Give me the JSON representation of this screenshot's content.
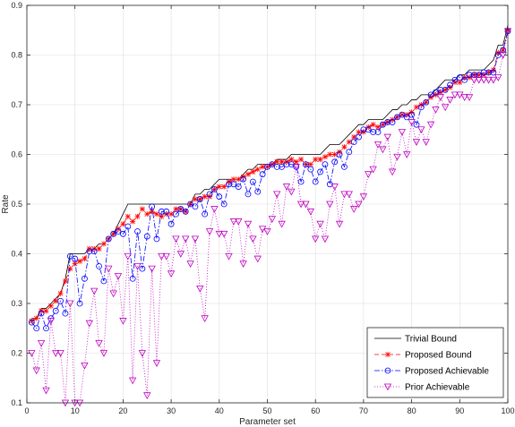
{
  "chart_data": {
    "type": "line",
    "xlabel": "Parameter set",
    "ylabel": "Rate",
    "xlim": [
      0,
      100
    ],
    "ylim": [
      0.1,
      0.9
    ],
    "xticks": [
      0,
      10,
      20,
      30,
      40,
      50,
      60,
      70,
      80,
      90,
      100
    ],
    "yticks": [
      0.1,
      0.2,
      0.3,
      0.4,
      0.5,
      0.6,
      0.7,
      0.8,
      0.9
    ],
    "grid": true,
    "legend_position": "bottom-right",
    "x": [
      1,
      2,
      3,
      4,
      5,
      6,
      7,
      8,
      9,
      10,
      11,
      12,
      13,
      14,
      15,
      16,
      17,
      18,
      19,
      20,
      21,
      22,
      23,
      24,
      25,
      26,
      27,
      28,
      29,
      30,
      31,
      32,
      33,
      34,
      35,
      36,
      37,
      38,
      39,
      40,
      41,
      42,
      43,
      44,
      45,
      46,
      47,
      48,
      49,
      50,
      51,
      52,
      53,
      54,
      55,
      56,
      57,
      58,
      59,
      60,
      61,
      62,
      63,
      64,
      65,
      66,
      67,
      68,
      69,
      70,
      71,
      72,
      73,
      74,
      75,
      76,
      77,
      78,
      79,
      80,
      81,
      82,
      83,
      84,
      85,
      86,
      87,
      88,
      89,
      90,
      91,
      92,
      93,
      94,
      95,
      96,
      97,
      98,
      99,
      100
    ],
    "series": [
      {
        "name": "Trivial Bound",
        "color": "#000000",
        "style": "solid",
        "marker": "none",
        "values": [
          0.27,
          0.27,
          0.29,
          0.29,
          0.3,
          0.31,
          0.32,
          0.35,
          0.4,
          0.4,
          0.4,
          0.4,
          0.41,
          0.41,
          0.42,
          0.42,
          0.43,
          0.44,
          0.46,
          0.48,
          0.5,
          0.5,
          0.5,
          0.5,
          0.5,
          0.5,
          0.5,
          0.5,
          0.5,
          0.5,
          0.5,
          0.5,
          0.5,
          0.5,
          0.52,
          0.52,
          0.53,
          0.53,
          0.54,
          0.55,
          0.55,
          0.55,
          0.55,
          0.55,
          0.56,
          0.57,
          0.57,
          0.58,
          0.58,
          0.58,
          0.58,
          0.59,
          0.59,
          0.59,
          0.6,
          0.6,
          0.6,
          0.6,
          0.6,
          0.6,
          0.6,
          0.61,
          0.62,
          0.62,
          0.62,
          0.63,
          0.64,
          0.65,
          0.66,
          0.66,
          0.67,
          0.67,
          0.67,
          0.67,
          0.68,
          0.69,
          0.69,
          0.7,
          0.7,
          0.71,
          0.71,
          0.72,
          0.72,
          0.72,
          0.73,
          0.74,
          0.75,
          0.75,
          0.75,
          0.76,
          0.76,
          0.77,
          0.77,
          0.77,
          0.77,
          0.78,
          0.79,
          0.82,
          0.82,
          0.86
        ]
      },
      {
        "name": "Proposed Bound",
        "color": "#ff0000",
        "style": "dashed",
        "marker": "x",
        "values": [
          0.265,
          0.27,
          0.285,
          0.285,
          0.295,
          0.305,
          0.32,
          0.345,
          0.37,
          0.38,
          0.385,
          0.39,
          0.41,
          0.41,
          0.41,
          0.42,
          0.43,
          0.44,
          0.45,
          0.46,
          0.475,
          0.465,
          0.475,
          0.49,
          0.48,
          0.485,
          0.48,
          0.475,
          0.48,
          0.48,
          0.49,
          0.49,
          0.485,
          0.5,
          0.51,
          0.51,
          0.515,
          0.515,
          0.53,
          0.535,
          0.535,
          0.545,
          0.55,
          0.55,
          0.555,
          0.56,
          0.565,
          0.57,
          0.575,
          0.575,
          0.58,
          0.585,
          0.585,
          0.585,
          0.59,
          0.585,
          0.59,
          0.58,
          0.58,
          0.59,
          0.59,
          0.595,
          0.6,
          0.6,
          0.605,
          0.615,
          0.625,
          0.635,
          0.645,
          0.645,
          0.655,
          0.66,
          0.655,
          0.66,
          0.665,
          0.67,
          0.675,
          0.68,
          0.68,
          0.685,
          0.695,
          0.7,
          0.705,
          0.715,
          0.72,
          0.725,
          0.73,
          0.735,
          0.745,
          0.745,
          0.755,
          0.755,
          0.76,
          0.76,
          0.76,
          0.765,
          0.77,
          0.805,
          0.81,
          0.85
        ]
      },
      {
        "name": "Proposed Achievable",
        "color": "#0000ff",
        "style": "dashdot",
        "marker": "circle",
        "values": [
          0.262,
          0.25,
          0.28,
          0.25,
          0.27,
          0.285,
          0.305,
          0.28,
          0.395,
          0.39,
          0.3,
          0.35,
          0.405,
          0.405,
          0.375,
          0.345,
          0.43,
          0.44,
          0.445,
          0.44,
          0.455,
          0.35,
          0.445,
          0.37,
          0.435,
          0.495,
          0.43,
          0.485,
          0.485,
          0.46,
          0.48,
          0.49,
          0.485,
          0.5,
          0.495,
          0.51,
          0.48,
          0.52,
          0.53,
          0.515,
          0.5,
          0.54,
          0.54,
          0.535,
          0.55,
          0.52,
          0.545,
          0.525,
          0.56,
          0.575,
          0.58,
          0.575,
          0.575,
          0.58,
          0.58,
          0.575,
          0.545,
          0.58,
          0.57,
          0.545,
          0.565,
          0.58,
          0.54,
          0.585,
          0.6,
          0.575,
          0.605,
          0.625,
          0.635,
          0.65,
          0.65,
          0.645,
          0.645,
          0.66,
          0.665,
          0.665,
          0.675,
          0.68,
          0.675,
          0.68,
          0.66,
          0.695,
          0.705,
          0.72,
          0.725,
          0.73,
          0.73,
          0.74,
          0.75,
          0.755,
          0.75,
          0.76,
          0.76,
          0.76,
          0.765,
          0.765,
          0.765,
          0.8,
          0.81,
          0.848
        ]
      },
      {
        "name": "Prior Achievable",
        "color": "#bf00bf",
        "style": "dotted",
        "marker": "triangle-down",
        "values": [
          0.2,
          0.165,
          0.22,
          0.125,
          0.265,
          0.2,
          0.2,
          0.1,
          0.3,
          0.1,
          0.1,
          0.175,
          0.26,
          0.325,
          0.22,
          0.2,
          0.37,
          0.32,
          0.355,
          0.265,
          0.395,
          0.145,
          0.375,
          0.2,
          0.115,
          0.37,
          0.18,
          0.395,
          0.395,
          0.36,
          0.43,
          0.4,
          0.43,
          0.38,
          0.43,
          0.33,
          0.27,
          0.445,
          0.49,
          0.44,
          0.44,
          0.395,
          0.465,
          0.465,
          0.38,
          0.46,
          0.43,
          0.39,
          0.45,
          0.445,
          0.47,
          0.52,
          0.46,
          0.535,
          0.525,
          0.575,
          0.5,
          0.5,
          0.485,
          0.43,
          0.46,
          0.43,
          0.5,
          0.535,
          0.46,
          0.52,
          0.52,
          0.49,
          0.5,
          0.515,
          0.56,
          0.57,
          0.62,
          0.61,
          0.635,
          0.565,
          0.595,
          0.645,
          0.6,
          0.665,
          0.625,
          0.65,
          0.625,
          0.66,
          0.69,
          0.715,
          0.695,
          0.71,
          0.72,
          0.72,
          0.715,
          0.715,
          0.75,
          0.75,
          0.75,
          0.75,
          0.75,
          0.755,
          0.8,
          0.848
        ]
      }
    ]
  }
}
